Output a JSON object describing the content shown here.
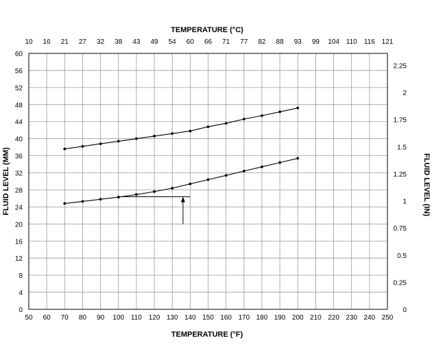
{
  "chart_data": {
    "type": "line",
    "title": "",
    "x": [
      70,
      80,
      90,
      100,
      110,
      120,
      130,
      140,
      150,
      160,
      170,
      180,
      190,
      200
    ],
    "series": [
      {
        "values": [
          37.6,
          38.2,
          38.8,
          39.4,
          40.0,
          40.6,
          41.2,
          41.8,
          42.8,
          43.6,
          44.6,
          45.4,
          46.3,
          47.2
        ]
      },
      {
        "values": [
          24.8,
          25.3,
          25.8,
          26.3,
          26.9,
          27.6,
          28.4,
          29.4,
          30.4,
          31.4,
          32.4,
          33.4,
          34.4,
          35.4
        ]
      }
    ],
    "xlabel": "TEMPERATURE (°F)",
    "x2label": "TEMPERATURE (°C)",
    "ylabel": "FLUID LEVEL (MM)",
    "y2label": "FLUID LEVEL (IN)",
    "xlim": [
      50,
      250
    ],
    "ylim": [
      0,
      60
    ],
    "y2lim": [
      0,
      2.36
    ],
    "xticks": [
      "50",
      "60",
      "70",
      "80",
      "90",
      "100",
      "110",
      "120",
      "130",
      "140",
      "150",
      "160",
      "170",
      "180",
      "190",
      "200",
      "210",
      "220",
      "230",
      "240",
      "250"
    ],
    "x2ticks": [
      "10",
      "16",
      "21",
      "27",
      "32",
      "38",
      "43",
      "49",
      "54",
      "60",
      "66",
      "71",
      "77",
      "82",
      "88",
      "93",
      "99",
      "104",
      "110",
      "116",
      "121"
    ],
    "yticks": [
      "0",
      "4",
      "8",
      "12",
      "16",
      "20",
      "24",
      "28",
      "32",
      "36",
      "40",
      "44",
      "48",
      "52",
      "56",
      "60"
    ],
    "y2ticks": [
      {
        "label": "0",
        "value": 0
      },
      {
        "label": "0.25",
        "value": 0.25
      },
      {
        "label": "0.5",
        "value": 0.5
      },
      {
        "label": "0.75",
        "value": 0.75
      },
      {
        "label": "1",
        "value": 1.0
      },
      {
        "label": "1.25",
        "value": 1.25
      },
      {
        "label": "1.5",
        "value": 1.5
      },
      {
        "label": "1.75",
        "value": 1.75
      },
      {
        "label": "2",
        "value": 2.0
      },
      {
        "label": "2.25",
        "value": 2.25
      }
    ],
    "grid": true,
    "line_color": "#000000",
    "annotation": {
      "type": "arrow",
      "x": 136,
      "y_from": 20,
      "y_to": 26.4,
      "x_from": 100,
      "x_to": 140,
      "y_level": 26.4
    }
  }
}
